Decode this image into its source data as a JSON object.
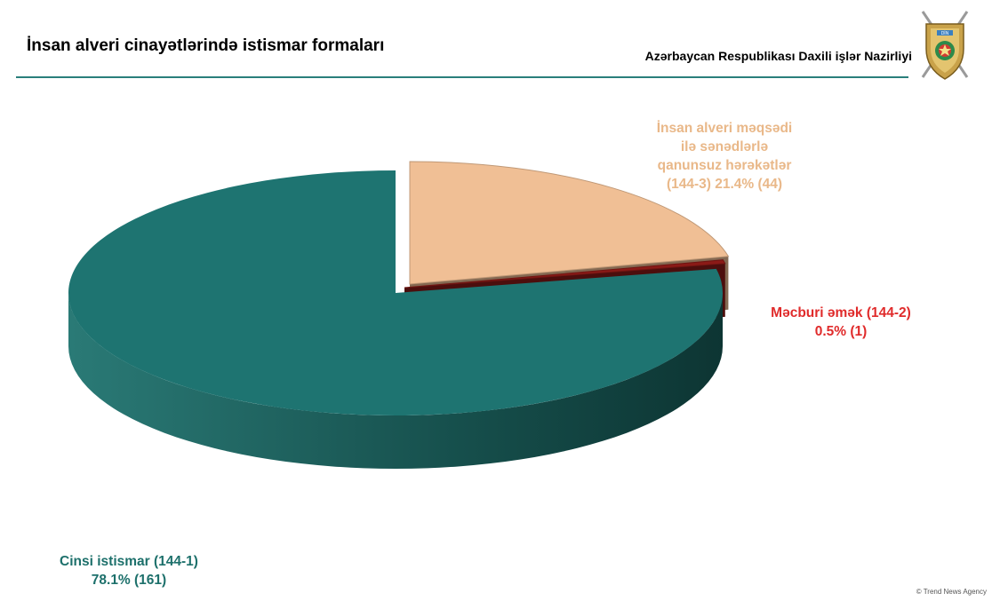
{
  "header": {
    "title": "İnsan alveri cinayətlərində istismar formaları",
    "organization": "Azərbaycan Respublikası Daxili işlər Nazirliyi",
    "emblem_icon": "police-shield-emblem-icon",
    "emblem_text": "DİN"
  },
  "chart_data": {
    "type": "pie",
    "style": "3d-exploded",
    "title": "İnsan alveri cinayətlərində istismar formaları",
    "slices": [
      {
        "label_lines": [
          "Cinsi istismar (144-1)",
          "78.1% (161)"
        ],
        "value": 161,
        "percent": 78.1,
        "color": "#1e7471"
      },
      {
        "label_lines": [
          "Məcburi əmək (144-2)",
          "0.5% (1)"
        ],
        "value": 1,
        "percent": 0.5,
        "color": "#8b1a17"
      },
      {
        "label_lines": [
          "İnsan alveri məqsədi",
          "ilə sənədlərlə",
          "qanunsuz hərəkətlər",
          "(144-3)  21.4% (44)"
        ],
        "value": 44,
        "percent": 21.4,
        "color": "#f0bf95"
      }
    ]
  },
  "footer": {
    "credit": "© Trend News Agency"
  }
}
